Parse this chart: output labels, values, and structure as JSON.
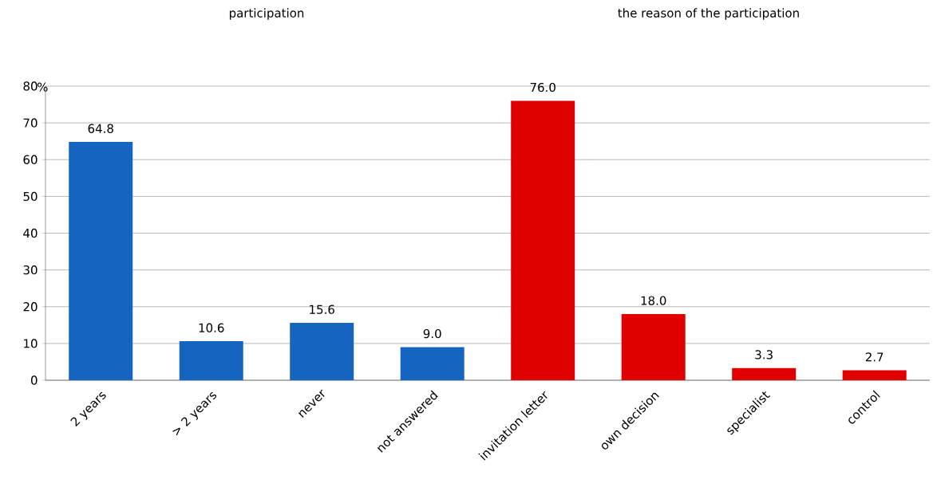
{
  "chart_data": {
    "type": "bar",
    "ylabel": "%",
    "annotations": [
      "participation",
      "the reason of the participation"
    ],
    "categories": [
      "2 years",
      "> 2 years",
      "never",
      "not answered",
      "invitation letter",
      "own decision",
      "specialist",
      "control"
    ],
    "values": [
      64.8,
      10.6,
      15.6,
      9.0,
      76.0,
      18.0,
      3.3,
      2.7
    ],
    "value_labels": [
      "64.8",
      "10.6",
      "15.6",
      "9.0",
      "76.0",
      "18.0",
      "3.3",
      "2.7"
    ],
    "colors": [
      "#1565c0",
      "#1565c0",
      "#1565c0",
      "#1565c0",
      "#e00000",
      "#e00000",
      "#e00000",
      "#e00000"
    ],
    "ylim": [
      0,
      80
    ],
    "yticks": [
      0,
      10,
      20,
      30,
      40,
      50,
      60,
      70,
      80
    ],
    "grid": "y"
  }
}
